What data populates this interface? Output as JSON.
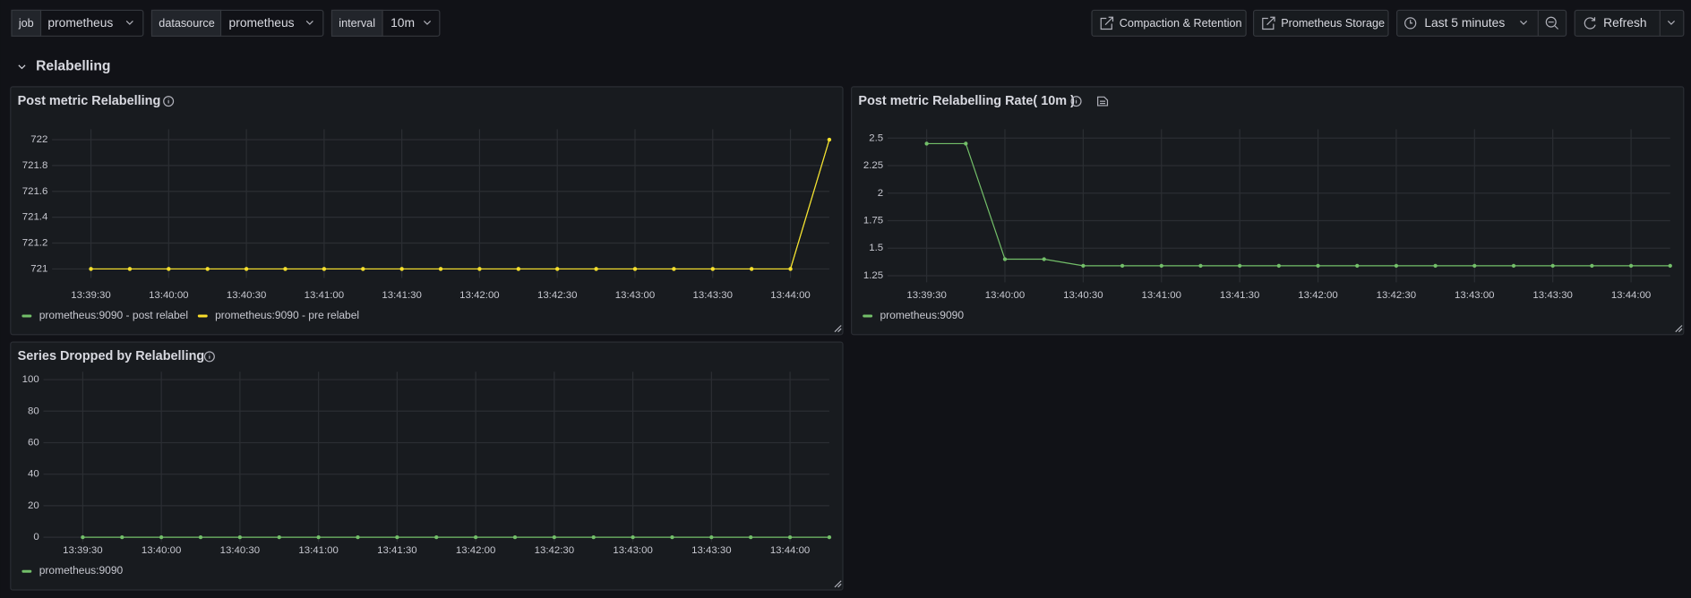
{
  "toolbar": {
    "variables": [
      {
        "label": "job",
        "value": "prometheus"
      },
      {
        "label": "datasource",
        "value": "prometheus"
      },
      {
        "label": "interval",
        "value": "10m"
      }
    ],
    "links": [
      "Compaction & Retention",
      "Prometheus Storage"
    ],
    "time_range": "Last 5 minutes",
    "refresh": "Refresh"
  },
  "row": {
    "title": "Relabelling"
  },
  "chart_data": [
    {
      "type": "line",
      "title": "Post metric Relabelling",
      "x": [
        "13:39:30",
        "13:39:45",
        "13:40:00",
        "13:40:15",
        "13:40:30",
        "13:40:45",
        "13:41:00",
        "13:41:15",
        "13:41:30",
        "13:41:45",
        "13:42:00",
        "13:42:15",
        "13:42:30",
        "13:42:45",
        "13:43:00",
        "13:43:15",
        "13:43:30",
        "13:43:45",
        "13:44:00",
        "13:44:15"
      ],
      "series": [
        {
          "name": "prometheus:9090 - post relabel",
          "color": "#73bf69",
          "values": [
            721,
            721,
            721,
            721,
            721,
            721,
            721,
            721,
            721,
            721,
            721,
            721,
            721,
            721,
            721,
            721,
            721,
            721,
            721,
            722
          ]
        },
        {
          "name": "prometheus:9090 - pre relabel",
          "color": "#fade2a",
          "values": [
            721,
            721,
            721,
            721,
            721,
            721,
            721,
            721,
            721,
            721,
            721,
            721,
            721,
            721,
            721,
            721,
            721,
            721,
            721,
            722
          ]
        }
      ],
      "xlim": [
        "13:39:15",
        "13:44:15"
      ],
      "ylim": [
        720.93,
        722.08
      ],
      "xticks": [
        "13:39:30",
        "13:40:00",
        "13:40:30",
        "13:41:00",
        "13:41:30",
        "13:42:00",
        "13:42:30",
        "13:43:00",
        "13:43:30",
        "13:44:00"
      ],
      "yticks": [
        721,
        721.2,
        721.4,
        721.6,
        721.8,
        722
      ],
      "grid": true
    },
    {
      "type": "line",
      "title": "Post metric Relabelling Rate( 10m )",
      "x": [
        "13:39:30",
        "13:39:45",
        "13:40:00",
        "13:40:15",
        "13:40:30",
        "13:40:45",
        "13:41:00",
        "13:41:15",
        "13:41:30",
        "13:41:45",
        "13:42:00",
        "13:42:15",
        "13:42:30",
        "13:42:45",
        "13:43:00",
        "13:43:15",
        "13:43:30",
        "13:43:45",
        "13:44:00",
        "13:44:15"
      ],
      "series": [
        {
          "name": "prometheus:9090",
          "color": "#73bf69",
          "values": [
            2.45,
            2.45,
            1.4,
            1.4,
            1.34,
            1.34,
            1.34,
            1.34,
            1.34,
            1.34,
            1.34,
            1.34,
            1.34,
            1.34,
            1.34,
            1.34,
            1.34,
            1.34,
            1.34,
            1.34
          ]
        }
      ],
      "xlim": [
        "13:39:15",
        "13:44:15"
      ],
      "ylim": [
        1.19,
        2.58
      ],
      "xticks": [
        "13:39:30",
        "13:40:00",
        "13:40:30",
        "13:41:00",
        "13:41:30",
        "13:42:00",
        "13:42:30",
        "13:43:00",
        "13:43:30",
        "13:44:00"
      ],
      "yticks": [
        1.25,
        1.5,
        1.75,
        2,
        2.25,
        2.5
      ],
      "grid": true
    },
    {
      "type": "line",
      "title": "Series Dropped by Relabelling",
      "x": [
        "13:39:30",
        "13:39:45",
        "13:40:00",
        "13:40:15",
        "13:40:30",
        "13:40:45",
        "13:41:00",
        "13:41:15",
        "13:41:30",
        "13:41:45",
        "13:42:00",
        "13:42:15",
        "13:42:30",
        "13:42:45",
        "13:43:00",
        "13:43:15",
        "13:43:30",
        "13:43:45",
        "13:44:00",
        "13:44:15"
      ],
      "series": [
        {
          "name": "prometheus:9090",
          "color": "#73bf69",
          "values": [
            0,
            0,
            0,
            0,
            0,
            0,
            0,
            0,
            0,
            0,
            0,
            0,
            0,
            0,
            0,
            0,
            0,
            0,
            0,
            0
          ]
        }
      ],
      "xlim": [
        "13:39:15",
        "13:44:15"
      ],
      "ylim": [
        -3,
        105
      ],
      "xticks": [
        "13:39:30",
        "13:40:00",
        "13:40:30",
        "13:41:00",
        "13:41:30",
        "13:42:00",
        "13:42:30",
        "13:43:00",
        "13:43:30",
        "13:44:00"
      ],
      "yticks": [
        0,
        20,
        40,
        60,
        80,
        100
      ],
      "grid": true
    }
  ]
}
